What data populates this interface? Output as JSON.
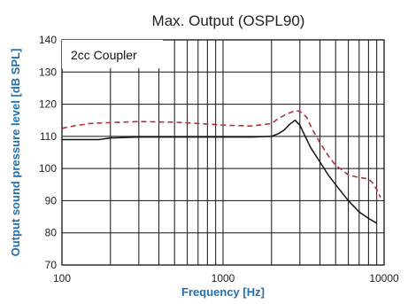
{
  "chart_data": {
    "type": "line",
    "title": "Max. Output (OSPL90)",
    "xlabel": "Frequency [Hz]",
    "ylabel": "Output sound pressure level [dB SPL]",
    "xscale": "log",
    "xlim": [
      100,
      10000
    ],
    "ylim": [
      70,
      140
    ],
    "x_ticks": [
      100,
      1000,
      10000
    ],
    "x_tick_labels": [
      "100",
      "1000",
      "10000"
    ],
    "y_ticks": [
      70,
      80,
      90,
      100,
      110,
      120,
      130,
      140
    ],
    "y_tick_labels": [
      "70",
      "80",
      "90",
      "100",
      "110",
      "120",
      "130",
      "140"
    ],
    "grid": true,
    "annotation": "2cc Coupler",
    "colors": {
      "axis_label": "#1f6fb2",
      "dashed_series": "#b5303c",
      "solid_series": "#111111",
      "grid": "#111111"
    },
    "series": [
      {
        "style": "solid",
        "x": [
          100,
          130,
          170,
          200,
          300,
          500,
          700,
          1000,
          1500,
          2000,
          2200,
          2400,
          2600,
          2800,
          3000,
          3200,
          3500,
          4000,
          4500,
          5000,
          6000,
          7000,
          8000,
          9000
        ],
        "y": [
          109,
          109,
          109,
          109.5,
          109.8,
          109.8,
          109.8,
          109.8,
          109.8,
          110,
          110.8,
          112,
          113.8,
          115,
          113.5,
          110.5,
          106.5,
          102,
          98,
          95,
          90,
          86.5,
          84.5,
          83
        ]
      },
      {
        "style": "dashed",
        "x": [
          100,
          120,
          150,
          200,
          300,
          400,
          500,
          700,
          1000,
          1500,
          2000,
          2200,
          2500,
          2800,
          3000,
          3300,
          3600,
          4000,
          4500,
          5000,
          5500,
          6000,
          7000,
          8000,
          8500,
          9000,
          9500
        ],
        "y": [
          112.5,
          113.3,
          114,
          114.3,
          114.6,
          114.5,
          114.4,
          114,
          113.5,
          113.2,
          114,
          115.5,
          117,
          118,
          117.8,
          116,
          112,
          108,
          104,
          101,
          99.5,
          98,
          97.2,
          96.8,
          95.5,
          93.5,
          91
        ]
      }
    ]
  }
}
